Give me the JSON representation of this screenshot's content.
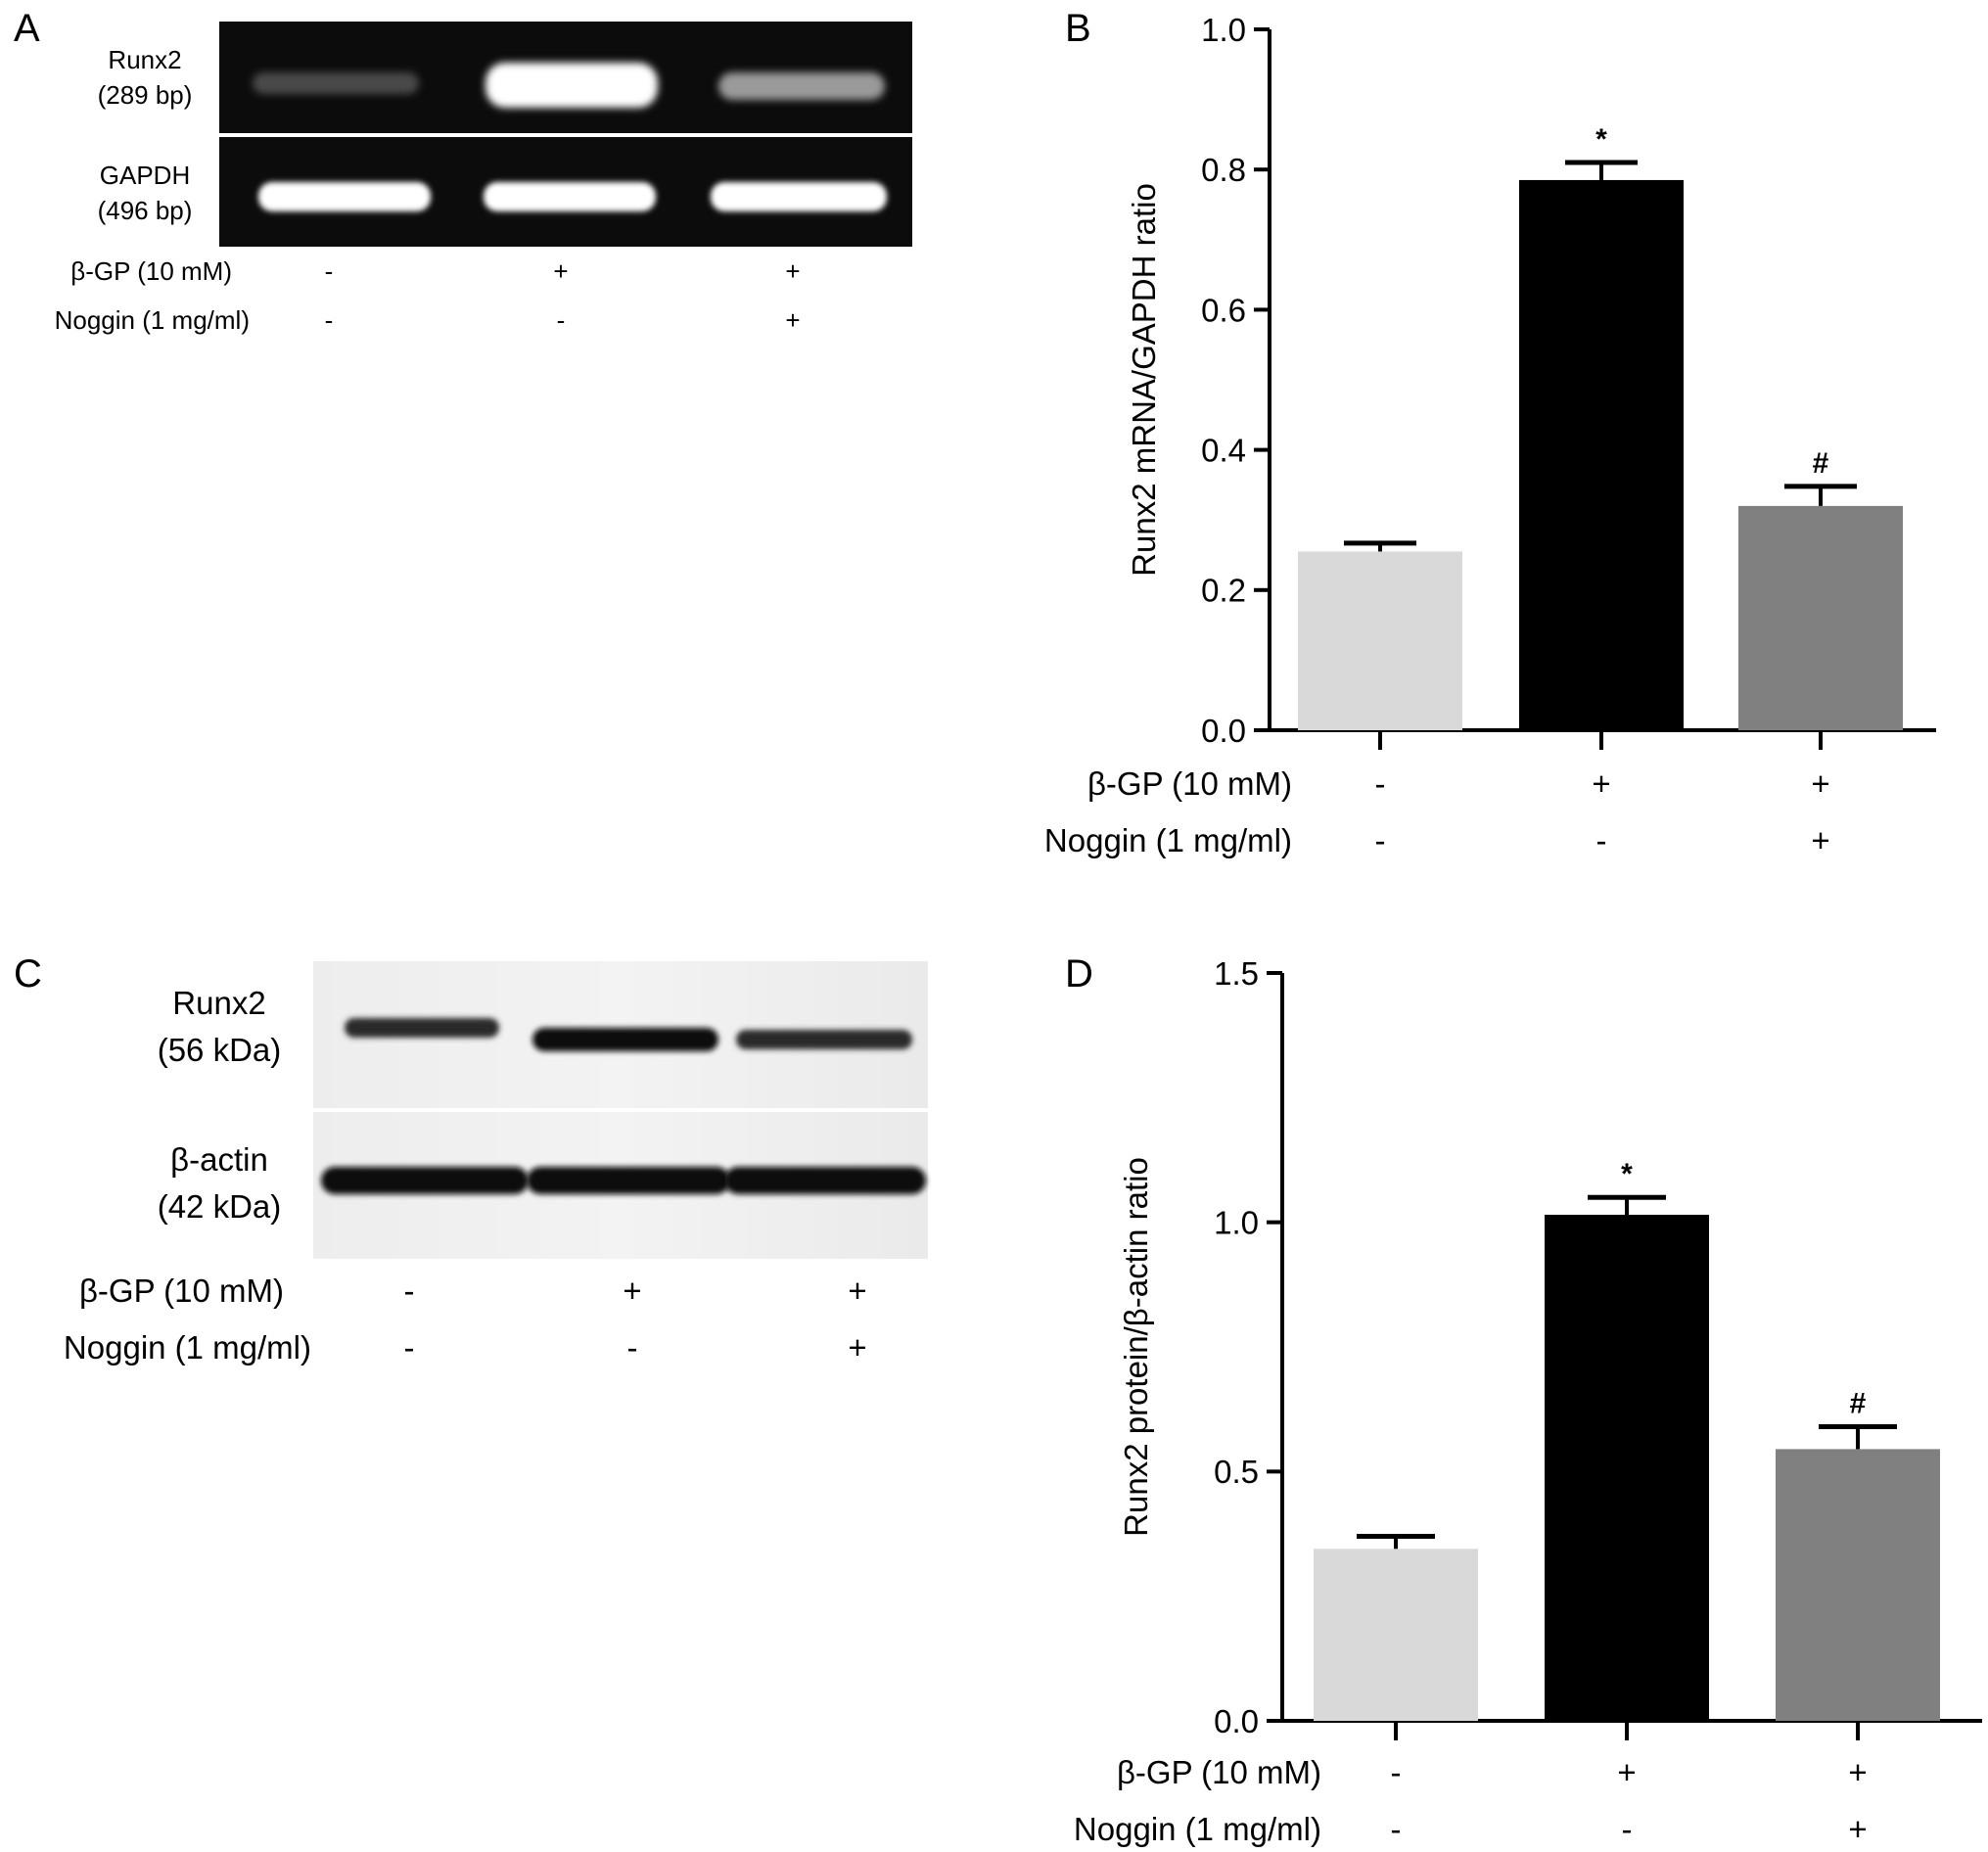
{
  "figure": {
    "panels": {
      "A": {
        "letter": "A",
        "bands": [
          {
            "name": "Runx2",
            "size": "(289 bp)"
          },
          {
            "name": "GAPDH",
            "size": "(496 bp)"
          }
        ],
        "conditions": [
          {
            "label": "β-GP (10 mM)",
            "values": [
              "-",
              "+",
              "+"
            ]
          },
          {
            "label": "Noggin (1 mg/ml)",
            "values": [
              "-",
              "-",
              "+"
            ]
          }
        ]
      },
      "C": {
        "letter": "C",
        "bands": [
          {
            "name": "Runx2",
            "size": "(56 kDa)"
          },
          {
            "name": "β-actin",
            "size": "(42 kDa)"
          }
        ],
        "conditions": [
          {
            "label": "β-GP (10 mM)",
            "values": [
              "-",
              "+",
              "+"
            ]
          },
          {
            "label": "Noggin (1 mg/ml)",
            "values": [
              "-",
              "-",
              "+"
            ]
          }
        ]
      }
    }
  },
  "chart_data": [
    {
      "panel": "B",
      "type": "bar",
      "categories": [
        "-/-",
        "+/-",
        "+/+"
      ],
      "series": [
        {
          "values": [
            0.255,
            0.785,
            0.32
          ],
          "errors": [
            0.012,
            0.025,
            0.028
          ]
        }
      ],
      "annotations": [
        "",
        "*",
        "#"
      ],
      "ylabel": "Runx2 mRNA/GAPDH ratio",
      "ylim": [
        0,
        1.0
      ],
      "yticks": [
        "0.0",
        "0.2",
        "0.4",
        "0.6",
        "0.8",
        "1.0"
      ],
      "ytick_values": [
        0,
        0.2,
        0.4,
        0.6,
        0.8,
        1.0
      ],
      "bar_colors": [
        "#d9d9d9",
        "#000000",
        "#808080"
      ],
      "conditions": [
        {
          "label": "β-GP (10 mM)",
          "values": [
            "-",
            "+",
            "+"
          ]
        },
        {
          "label": "Noggin (1 mg/ml)",
          "values": [
            "-",
            "-",
            "+"
          ]
        }
      ]
    },
    {
      "panel": "D",
      "type": "bar",
      "categories": [
        "-/-",
        "+/-",
        "+/+"
      ],
      "series": [
        {
          "values": [
            0.345,
            1.015,
            0.545
          ],
          "errors": [
            0.025,
            0.035,
            0.045
          ]
        }
      ],
      "annotations": [
        "",
        "*",
        "#"
      ],
      "ylabel": "Runx2 protein/β-actin ratio",
      "ylim": [
        0,
        1.5
      ],
      "yticks": [
        "0.0",
        "0.5",
        "1.0",
        "1.5"
      ],
      "ytick_values": [
        0,
        0.5,
        1.0,
        1.5
      ],
      "bar_colors": [
        "#d9d9d9",
        "#000000",
        "#808080"
      ],
      "conditions": [
        {
          "label": "β-GP (10 mM)",
          "values": [
            "-",
            "+",
            "+"
          ]
        },
        {
          "label": "Noggin (1 mg/ml)",
          "values": [
            "-",
            "-",
            "+"
          ]
        }
      ]
    }
  ]
}
